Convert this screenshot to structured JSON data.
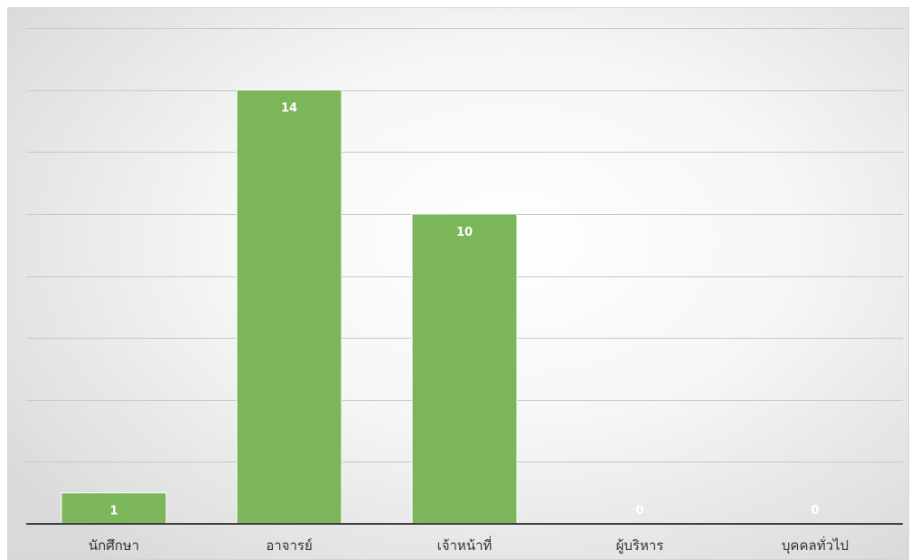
{
  "chart_data": {
    "type": "bar",
    "categories": [
      "นักศึกษา",
      "อาจารย์",
      "เจ้าหน้าที่",
      "ผู้บริหาร",
      "บุคคลทั่วไป"
    ],
    "values": [
      1,
      14,
      10,
      0,
      0
    ],
    "title": "",
    "xlabel": "",
    "ylabel": "",
    "ylim": [
      0,
      16
    ],
    "y_axis_labels_visible": false,
    "grid": true,
    "gridline_step": 2,
    "legend": "none",
    "colors": {
      "bar": "#7cb65a",
      "bar_border": "#ffffff",
      "data_label": "#ffffff",
      "gridline": "#c8c8c8",
      "axis": "#404040",
      "tick_label": "#333333"
    }
  }
}
